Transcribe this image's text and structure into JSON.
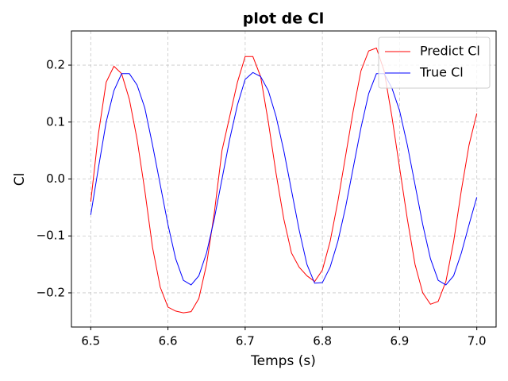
{
  "chart_data": {
    "type": "line",
    "title": "plot de Cl",
    "x_label": "Temps (s)",
    "y_label": "Cl",
    "x": [
      6.5,
      6.51,
      6.52,
      6.53,
      6.54,
      6.55,
      6.56,
      6.57,
      6.58,
      6.59,
      6.6,
      6.61,
      6.62,
      6.63,
      6.64,
      6.65,
      6.66,
      6.67,
      6.68,
      6.69,
      6.7,
      6.71,
      6.72,
      6.73,
      6.74,
      6.75,
      6.76,
      6.77,
      6.78,
      6.79,
      6.8,
      6.81,
      6.82,
      6.83,
      6.84,
      6.85,
      6.86,
      6.87,
      6.88,
      6.89,
      6.9,
      6.91,
      6.92,
      6.93,
      6.94,
      6.95,
      6.96,
      6.97,
      6.98,
      6.99,
      7.0
    ],
    "series": [
      {
        "name": "Predict Cl",
        "color": "#ff0000",
        "values": [
          -0.04,
          0.08,
          0.17,
          0.198,
          0.185,
          0.14,
          0.07,
          -0.02,
          -0.12,
          -0.19,
          -0.225,
          -0.232,
          -0.235,
          -0.233,
          -0.21,
          -0.15,
          -0.06,
          0.05,
          0.11,
          0.17,
          0.215,
          0.215,
          0.18,
          0.1,
          0.01,
          -0.07,
          -0.13,
          -0.155,
          -0.17,
          -0.18,
          -0.16,
          -0.11,
          -0.04,
          0.04,
          0.12,
          0.19,
          0.225,
          0.23,
          0.19,
          0.11,
          0.02,
          -0.07,
          -0.15,
          -0.2,
          -0.22,
          -0.215,
          -0.18,
          -0.11,
          -0.02,
          0.06,
          0.115
        ]
      },
      {
        "name": "True Cl",
        "color": "#0000ff",
        "values": [
          -0.063,
          0.02,
          0.1,
          0.155,
          0.185,
          0.185,
          0.165,
          0.125,
          0.06,
          -0.01,
          -0.08,
          -0.14,
          -0.178,
          -0.186,
          -0.17,
          -0.13,
          -0.07,
          0.0,
          0.07,
          0.13,
          0.175,
          0.187,
          0.18,
          0.155,
          0.11,
          0.05,
          -0.02,
          -0.09,
          -0.15,
          -0.183,
          -0.182,
          -0.155,
          -0.11,
          -0.05,
          0.02,
          0.09,
          0.15,
          0.185,
          0.185,
          0.16,
          0.12,
          0.06,
          -0.01,
          -0.08,
          -0.14,
          -0.178,
          -0.186,
          -0.17,
          -0.13,
          -0.08,
          -0.032
        ]
      }
    ],
    "xlim": [
      6.475,
      7.025
    ],
    "xticks": [
      6.5,
      6.6,
      6.7,
      6.8,
      6.9,
      {
        "value": 7,
        "label": "7.0"
      }
    ],
    "ylim": [
      -0.26,
      0.26
    ],
    "yticks": [
      {
        "value": -0.2,
        "label": "−0.2"
      },
      {
        "value": -0.1,
        "label": "−0.1"
      },
      {
        "value": 0,
        "label": "0.0"
      },
      0.1,
      0.2
    ],
    "grid": true,
    "legend": "upper right"
  }
}
